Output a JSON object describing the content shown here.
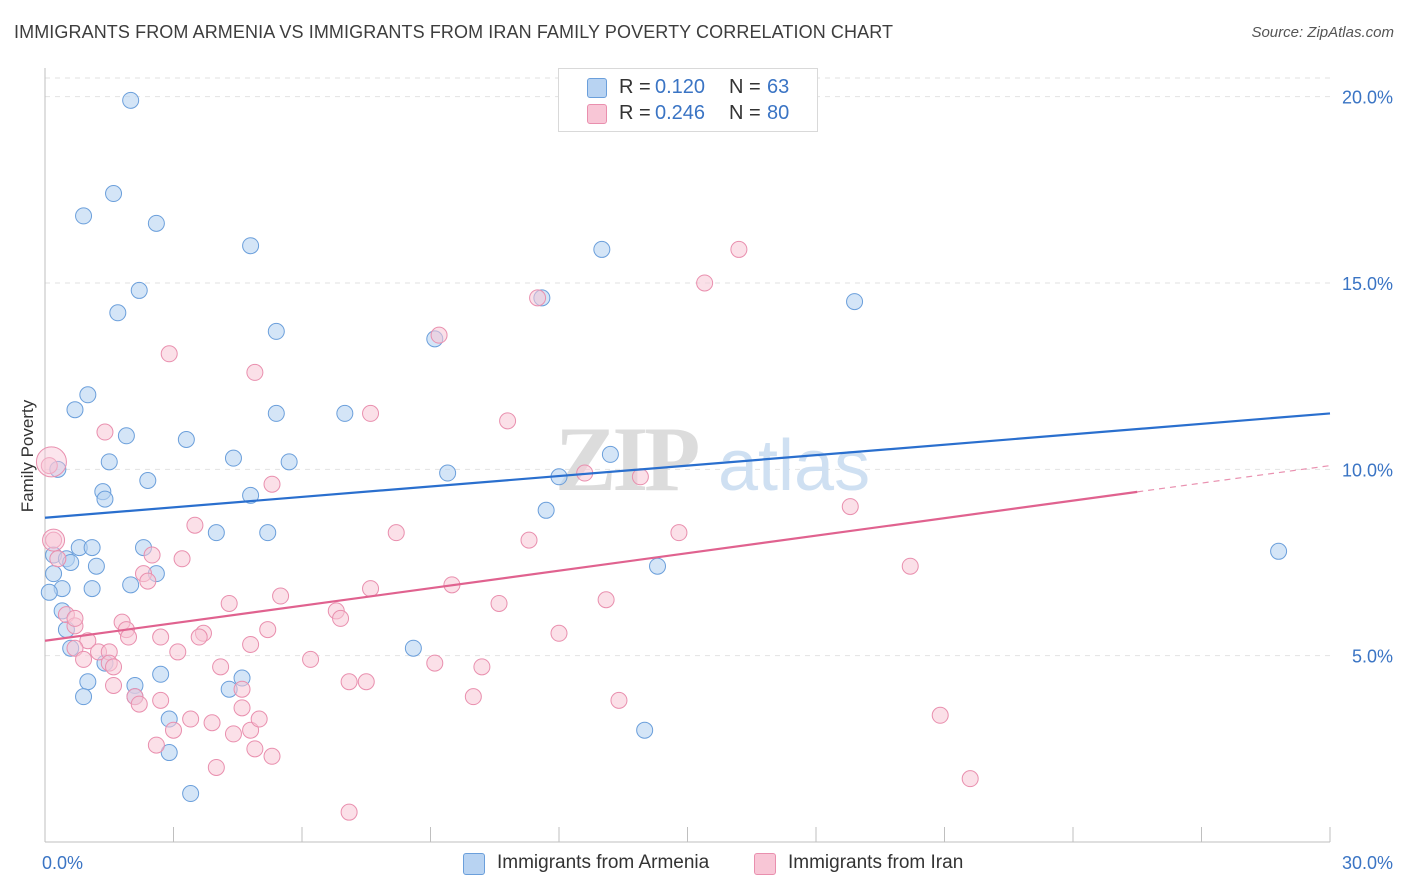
{
  "title": "IMMIGRANTS FROM ARMENIA VS IMMIGRANTS FROM IRAN FAMILY POVERTY CORRELATION CHART",
  "source": "Source: ZipAtlas.com",
  "watermark": {
    "zip": "ZIP",
    "atlas": "atlas"
  },
  "colors": {
    "armenia_fill": "#b8d3f2",
    "armenia_stroke": "#6b9fdb",
    "armenia_line": "#2a6fce",
    "iran_fill": "#f8c6d6",
    "iran_stroke": "#e98fae",
    "iran_line": "#e0628f",
    "axis_text": "#3a74c4",
    "grid": "#e2e2e2"
  },
  "legend": {
    "rows": [
      {
        "r_label": "R =",
        "r_value": "0.120",
        "n_label": "N =",
        "n_value": "63"
      },
      {
        "r_label": "R =",
        "r_value": "0.246",
        "n_label": "N =",
        "n_value": "80"
      }
    ]
  },
  "bottom_legend": {
    "armenia": "Immigrants from Armenia",
    "iran": "Immigrants from Iran"
  },
  "chart_data": {
    "type": "scatter",
    "title": "IMMIGRANTS FROM ARMENIA VS IMMIGRANTS FROM IRAN FAMILY POVERTY CORRELATION CHART",
    "xlabel": "",
    "ylabel": "Family Poverty",
    "xlim": [
      0,
      30
    ],
    "ylim": [
      0,
      20.5
    ],
    "x_ticks": [
      0,
      3,
      6,
      9,
      12,
      15,
      18,
      21,
      24,
      27,
      30
    ],
    "x_tick_labels": [
      {
        "value": 0,
        "label": "0.0%"
      },
      {
        "value": 30,
        "label": "30.0%"
      }
    ],
    "y_ticks": [
      {
        "value": 5,
        "label": "5.0%"
      },
      {
        "value": 10,
        "label": "10.0%"
      },
      {
        "value": 15,
        "label": "15.0%"
      },
      {
        "value": 20,
        "label": "20.0%"
      }
    ],
    "series": [
      {
        "name": "Immigrants from Armenia",
        "r": 0.12,
        "n": 63,
        "trend": {
          "x": [
            0,
            30
          ],
          "y": [
            8.7,
            11.5
          ],
          "dashed_from": null
        },
        "points": [
          [
            2.0,
            19.9
          ],
          [
            1.6,
            17.4
          ],
          [
            0.9,
            16.8
          ],
          [
            2.6,
            16.6
          ],
          [
            4.8,
            16.0
          ],
          [
            13.0,
            15.9
          ],
          [
            2.2,
            14.8
          ],
          [
            1.7,
            14.2
          ],
          [
            5.4,
            13.7
          ],
          [
            9.1,
            13.5
          ],
          [
            11.6,
            14.6
          ],
          [
            18.9,
            14.5
          ],
          [
            1.0,
            12.0
          ],
          [
            0.7,
            11.6
          ],
          [
            5.4,
            11.5
          ],
          [
            7.0,
            11.5
          ],
          [
            1.9,
            10.9
          ],
          [
            3.3,
            10.8
          ],
          [
            0.3,
            10.0
          ],
          [
            1.5,
            10.2
          ],
          [
            4.4,
            10.3
          ],
          [
            5.7,
            10.2
          ],
          [
            2.4,
            9.7
          ],
          [
            9.4,
            9.9
          ],
          [
            12.0,
            9.8
          ],
          [
            13.2,
            10.4
          ],
          [
            1.35,
            9.4
          ],
          [
            1.4,
            9.2
          ],
          [
            4.8,
            9.3
          ],
          [
            11.7,
            8.9
          ],
          [
            4.0,
            8.3
          ],
          [
            5.2,
            8.3
          ],
          [
            0.2,
            7.7
          ],
          [
            0.8,
            7.9
          ],
          [
            1.1,
            7.9
          ],
          [
            2.3,
            7.9
          ],
          [
            0.5,
            7.6
          ],
          [
            0.6,
            7.5
          ],
          [
            1.2,
            7.4
          ],
          [
            2.6,
            7.2
          ],
          [
            14.3,
            7.4
          ],
          [
            28.8,
            7.8
          ],
          [
            0.2,
            7.2
          ],
          [
            0.4,
            6.8
          ],
          [
            1.1,
            6.8
          ],
          [
            2.0,
            6.9
          ],
          [
            0.1,
            6.7
          ],
          [
            0.4,
            6.2
          ],
          [
            0.5,
            5.7
          ],
          [
            0.6,
            5.2
          ],
          [
            8.6,
            5.2
          ],
          [
            1.4,
            4.8
          ],
          [
            2.7,
            4.5
          ],
          [
            4.6,
            4.4
          ],
          [
            1.0,
            4.3
          ],
          [
            2.1,
            4.2
          ],
          [
            4.3,
            4.1
          ],
          [
            0.9,
            3.9
          ],
          [
            2.9,
            3.3
          ],
          [
            14.0,
            3.0
          ],
          [
            2.9,
            2.4
          ],
          [
            3.4,
            1.3
          ],
          [
            2.1,
            3.9
          ]
        ]
      },
      {
        "name": "Immigrants from Iran",
        "r": 0.246,
        "n": 80,
        "trend": {
          "x": [
            0,
            30
          ],
          "y": [
            5.4,
            10.1
          ],
          "dashed_from": 25.5
        },
        "points": [
          [
            16.2,
            15.9
          ],
          [
            15.4,
            15.0
          ],
          [
            11.5,
            14.6
          ],
          [
            9.2,
            13.6
          ],
          [
            2.9,
            13.1
          ],
          [
            4.9,
            12.6
          ],
          [
            7.6,
            11.5
          ],
          [
            10.8,
            11.3
          ],
          [
            1.4,
            11.0
          ],
          [
            0.1,
            10.1
          ],
          [
            12.6,
            9.9
          ],
          [
            13.9,
            9.8
          ],
          [
            5.3,
            9.6
          ],
          [
            18.8,
            9.0
          ],
          [
            3.5,
            8.5
          ],
          [
            8.2,
            8.3
          ],
          [
            11.3,
            8.1
          ],
          [
            14.8,
            8.3
          ],
          [
            0.2,
            8.1
          ],
          [
            2.5,
            7.7
          ],
          [
            3.2,
            7.6
          ],
          [
            2.3,
            7.2
          ],
          [
            20.2,
            7.4
          ],
          [
            0.3,
            7.6
          ],
          [
            7.6,
            6.8
          ],
          [
            9.5,
            6.9
          ],
          [
            5.5,
            6.6
          ],
          [
            4.3,
            6.4
          ],
          [
            10.6,
            6.4
          ],
          [
            13.1,
            6.5
          ],
          [
            0.5,
            6.1
          ],
          [
            6.8,
            6.2
          ],
          [
            6.9,
            6.0
          ],
          [
            1.8,
            5.9
          ],
          [
            1.9,
            5.7
          ],
          [
            0.7,
            5.8
          ],
          [
            12.0,
            5.6
          ],
          [
            3.7,
            5.6
          ],
          [
            5.2,
            5.7
          ],
          [
            1.0,
            5.4
          ],
          [
            2.7,
            5.5
          ],
          [
            1.95,
            5.5
          ],
          [
            4.8,
            5.3
          ],
          [
            3.1,
            5.1
          ],
          [
            1.25,
            5.1
          ],
          [
            1.5,
            5.1
          ],
          [
            0.7,
            5.2
          ],
          [
            0.9,
            4.9
          ],
          [
            1.5,
            4.8
          ],
          [
            1.6,
            4.7
          ],
          [
            6.2,
            4.9
          ],
          [
            9.1,
            4.8
          ],
          [
            10.2,
            4.7
          ],
          [
            4.1,
            4.7
          ],
          [
            7.1,
            4.3
          ],
          [
            7.5,
            4.3
          ],
          [
            1.6,
            4.2
          ],
          [
            4.6,
            4.1
          ],
          [
            2.1,
            3.9
          ],
          [
            2.2,
            3.7
          ],
          [
            2.7,
            3.8
          ],
          [
            10.0,
            3.9
          ],
          [
            13.4,
            3.8
          ],
          [
            4.6,
            3.6
          ],
          [
            20.9,
            3.4
          ],
          [
            3.4,
            3.3
          ],
          [
            3.9,
            3.2
          ],
          [
            4.8,
            3.0
          ],
          [
            3.0,
            3.0
          ],
          [
            4.4,
            2.9
          ],
          [
            2.6,
            2.6
          ],
          [
            4.9,
            2.5
          ],
          [
            5.3,
            2.3
          ],
          [
            4.0,
            2.0
          ],
          [
            21.6,
            1.7
          ],
          [
            7.1,
            0.8
          ],
          [
            0.7,
            6.0
          ],
          [
            5.0,
            3.3
          ],
          [
            3.6,
            5.5
          ],
          [
            2.4,
            7.0
          ]
        ]
      }
    ]
  }
}
